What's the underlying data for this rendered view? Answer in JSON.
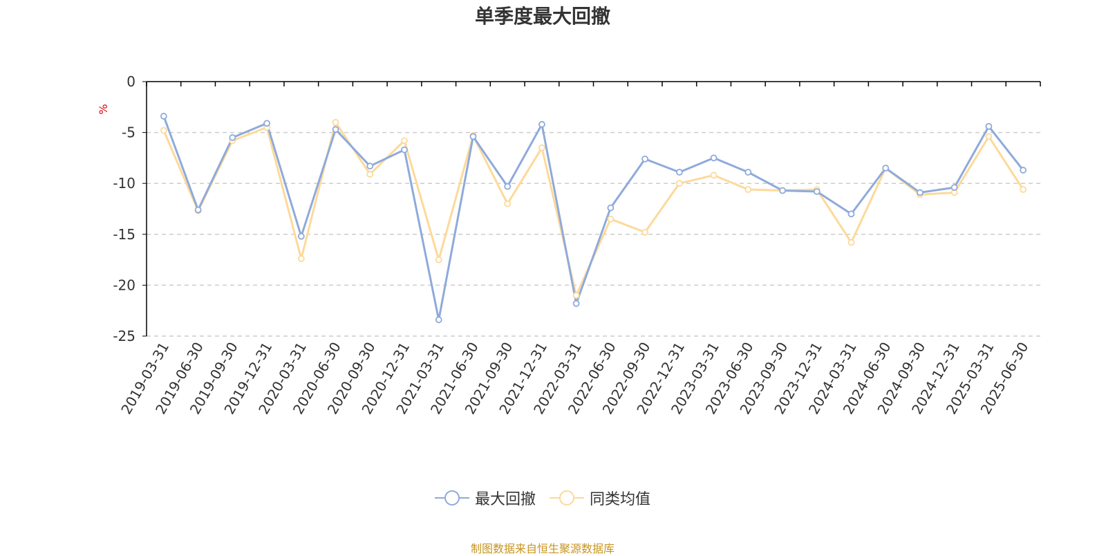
{
  "title": "单季度最大回撤",
  "source_note": "制图数据来自恒生聚源数据库",
  "colors": {
    "series1": "#8eaadb",
    "series2": "#fdd999",
    "axis": "#000000",
    "grid": "#cccccc",
    "unit": "#e00000"
  },
  "chart_data": {
    "type": "line",
    "title": "单季度最大回撤",
    "ylabel": "%",
    "ylim": [
      -25,
      0
    ],
    "yticks": [
      0,
      -5,
      -10,
      -15,
      -20,
      -25
    ],
    "grid": true,
    "legend_position": "bottom",
    "categories": [
      "2019-03-31",
      "2019-06-30",
      "2019-09-30",
      "2019-12-31",
      "2020-03-31",
      "2020-06-30",
      "2020-09-30",
      "2020-12-31",
      "2021-03-31",
      "2021-06-30",
      "2021-09-30",
      "2021-12-31",
      "2022-03-31",
      "2022-06-30",
      "2022-09-30",
      "2022-12-31",
      "2023-03-31",
      "2023-06-30",
      "2023-09-30",
      "2023-12-31",
      "2024-03-31",
      "2024-06-30",
      "2024-09-30",
      "2024-12-31",
      "2025-03-31",
      "2025-06-30"
    ],
    "series": [
      {
        "name": "最大回撤",
        "values": [
          -3.4,
          -12.6,
          -5.5,
          -4.1,
          -15.2,
          -4.7,
          -8.3,
          -6.7,
          -23.4,
          -5.4,
          -10.3,
          -4.2,
          -21.8,
          -12.4,
          -7.6,
          -8.9,
          -7.5,
          -8.9,
          -10.7,
          -10.8,
          -13.0,
          -8.5,
          -10.9,
          -10.4,
          -4.4,
          -8.7
        ]
      },
      {
        "name": "同类均值",
        "values": [
          -4.8,
          -12.7,
          -5.8,
          -4.5,
          -17.4,
          -4.0,
          -9.1,
          -5.8,
          -17.5,
          -5.3,
          -12.0,
          -6.5,
          -21.0,
          -13.5,
          -14.8,
          -10.0,
          -9.2,
          -10.6,
          -10.7,
          -10.6,
          -15.8,
          -8.5,
          -11.1,
          -10.9,
          -5.4,
          -10.6
        ]
      }
    ]
  }
}
